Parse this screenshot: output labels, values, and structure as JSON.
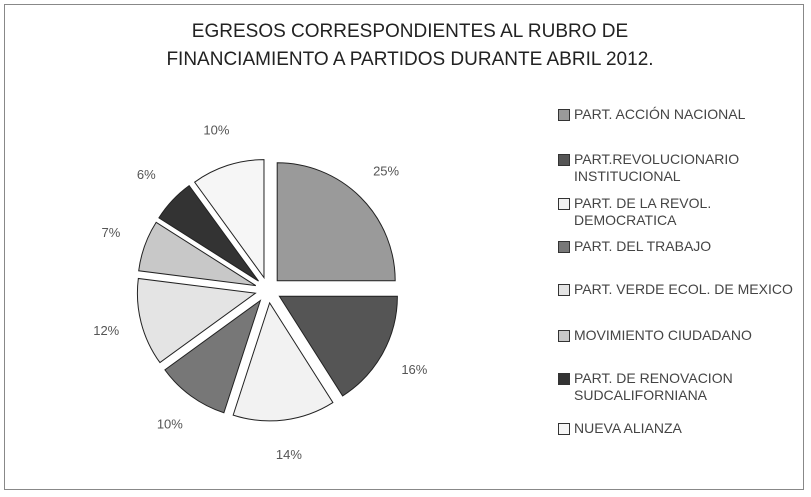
{
  "chart_data": {
    "type": "pie",
    "title": "EGRESOS CORRESPONDIENTES AL RUBRO DE FINANCIAMIENTO A PARTIDOS DURANTE ABRIL 2012.",
    "categories": [
      "PART. ACCIÓN NACIONAL",
      "PART.REVOLUCIONARIO INSTITUCIONAL",
      "PART. DE LA REVOL. DEMOCRATICA",
      "PART. DEL TRABAJO",
      "PART. VERDE ECOL. DE MEXICO",
      "MOVIMIENTO CIUDADANO",
      "PART. DE RENOVACION SUDCALIFORNIANA",
      "NUEVA ALIANZA"
    ],
    "values": [
      25,
      16,
      14,
      10,
      12,
      7,
      6,
      10
    ],
    "value_labels": [
      "25%",
      "16%",
      "14%",
      "10%",
      "12%",
      "7%",
      "6%",
      "10%"
    ],
    "colors": [
      "#9a9a9a",
      "#555555",
      "#f2f2f2",
      "#777777",
      "#e4e4e4",
      "#c8c8c8",
      "#333333",
      "#f6f6f6"
    ],
    "legend": "right"
  }
}
